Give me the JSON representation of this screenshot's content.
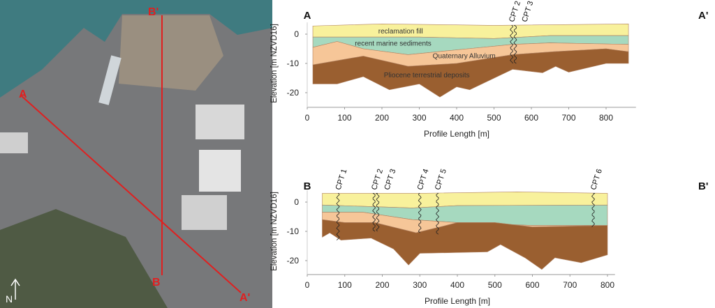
{
  "map": {
    "labels": {
      "a": "A",
      "a_prime": "A'",
      "b": "B",
      "b_prime": "B'",
      "north": "N"
    },
    "colors": {
      "section_line": "#e02020",
      "water": "#3f7b80"
    }
  },
  "layer_colors": {
    "reclamation_fill": "#f8f19c",
    "recent_marine": "#a6d9bf",
    "alluvium": "#f6c698",
    "pliocene": "#9a5f30"
  },
  "chart_data": [
    {
      "type": "area",
      "title_left": "A",
      "title_right": "A'",
      "xlabel": "Profile Length [m]",
      "ylabel": "Elevation [m NZVD16]",
      "xlim": [
        0,
        880
      ],
      "ylim": [
        -25,
        4
      ],
      "xticks": [
        0,
        100,
        200,
        300,
        400,
        500,
        600,
        700,
        800
      ],
      "yticks": [
        0,
        -10,
        -20
      ],
      "layer_labels": [
        "reclamation fill",
        "recent marine sediments",
        "Quaternary Alluvium",
        "Pliocene terrestrial deposits"
      ],
      "boundaries": {
        "top": [
          [
            15,
            2.8
          ],
          [
            200,
            3.5
          ],
          [
            500,
            3
          ],
          [
            860,
            3.5
          ]
        ],
        "fill_base": [
          [
            15,
            -1
          ],
          [
            300,
            -1
          ],
          [
            500,
            -1.5
          ],
          [
            650,
            -0.5
          ],
          [
            860,
            -0.5
          ]
        ],
        "marine_base": [
          [
            15,
            -4.5
          ],
          [
            80,
            -2.5
          ],
          [
            150,
            -5
          ],
          [
            270,
            -7
          ],
          [
            430,
            -5
          ],
          [
            550,
            -3.5
          ],
          [
            650,
            -3
          ],
          [
            860,
            -3.5
          ]
        ],
        "alluvium_base": [
          [
            15,
            -10.5
          ],
          [
            150,
            -7.5
          ],
          [
            270,
            -11
          ],
          [
            400,
            -10
          ],
          [
            550,
            -7
          ],
          [
            660,
            -6
          ],
          [
            800,
            -5
          ],
          [
            860,
            -6
          ]
        ],
        "pliocene_base": [
          [
            15,
            -17
          ],
          [
            80,
            -17
          ],
          [
            150,
            -14.5
          ],
          [
            220,
            -19
          ],
          [
            300,
            -17
          ],
          [
            355,
            -21.5
          ],
          [
            400,
            -18
          ],
          [
            435,
            -19
          ],
          [
            550,
            -12
          ],
          [
            630,
            -13.2
          ],
          [
            665,
            -11
          ],
          [
            700,
            -13
          ],
          [
            800,
            -10
          ],
          [
            860,
            -10
          ]
        ]
      },
      "cpts": [
        {
          "name": "CPT 2",
          "x": 547,
          "depth": -10
        },
        {
          "name": "CPT 3",
          "x": 557,
          "depth": -10
        }
      ]
    },
    {
      "type": "area",
      "title_left": "B",
      "title_right": "B'",
      "xlabel": "Profile Length [m]",
      "ylabel": "Elevation [m NZVD16]",
      "xlim": [
        0,
        820
      ],
      "ylim": [
        -25,
        4
      ],
      "xticks": [
        0,
        100,
        200,
        300,
        400,
        500,
        600,
        700,
        800
      ],
      "yticks": [
        0,
        -10,
        -20
      ],
      "boundaries": {
        "top": [
          [
            40,
            3
          ],
          [
            300,
            3
          ],
          [
            560,
            3.5
          ],
          [
            800,
            3
          ]
        ],
        "fill_base": [
          [
            40,
            -1
          ],
          [
            280,
            -2
          ],
          [
            400,
            -1.2
          ],
          [
            800,
            -1
          ]
        ],
        "marine_base": [
          [
            40,
            -3.5
          ],
          [
            150,
            -3.5
          ],
          [
            280,
            -6
          ],
          [
            400,
            -7
          ],
          [
            600,
            -8
          ],
          [
            800,
            -8
          ]
        ],
        "alluvium_base": [
          [
            40,
            -6
          ],
          [
            100,
            -7
          ],
          [
            180,
            -7
          ],
          [
            290,
            -10.5
          ],
          [
            370,
            -8
          ],
          [
            400,
            -7
          ],
          [
            500,
            -7
          ],
          [
            600,
            -8.5
          ],
          [
            800,
            -8
          ]
        ],
        "pliocene_base": [
          [
            40,
            -12
          ],
          [
            60,
            -10.5
          ],
          [
            90,
            -13
          ],
          [
            170,
            -12.3
          ],
          [
            230,
            -16
          ],
          [
            270,
            -21.5
          ],
          [
            300,
            -17.5
          ],
          [
            480,
            -17
          ],
          [
            515,
            -14.5
          ],
          [
            580,
            -19
          ],
          [
            625,
            -23
          ],
          [
            660,
            -19
          ],
          [
            730,
            -20.7
          ],
          [
            800,
            -18
          ]
        ]
      },
      "cpts": [
        {
          "name": "CPT 1",
          "x": 82,
          "depth": -13
        },
        {
          "name": "CPT 2",
          "x": 178,
          "depth": -10
        },
        {
          "name": "CPT 3",
          "x": 188,
          "depth": -10
        },
        {
          "name": "CPT 4",
          "x": 300,
          "depth": -10.5
        },
        {
          "name": "CPT 5",
          "x": 347,
          "depth": -11
        },
        {
          "name": "CPT 6",
          "x": 762,
          "depth": -8.5
        }
      ]
    }
  ]
}
